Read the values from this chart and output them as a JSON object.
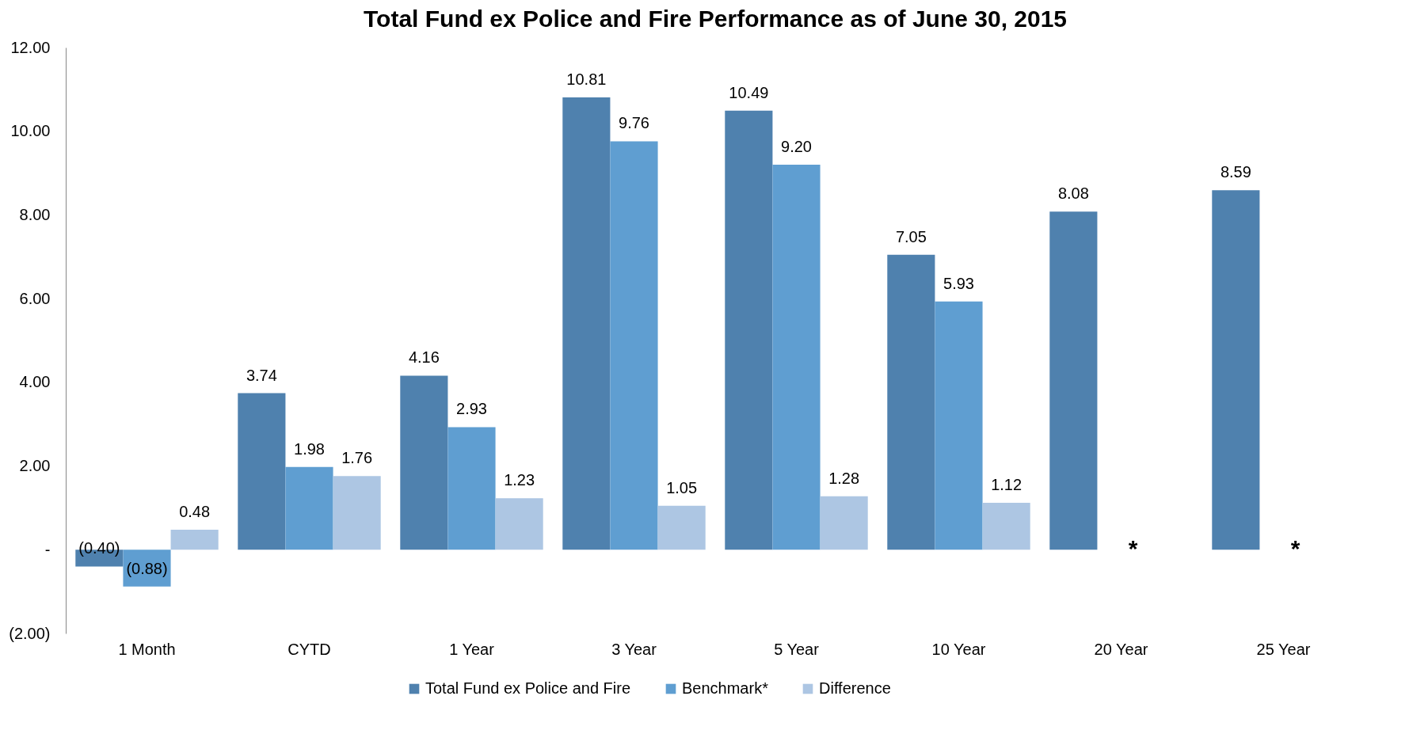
{
  "chart_data": {
    "type": "bar",
    "title": "Total Fund ex Police and Fire Performance as of June 30, 2015",
    "categories": [
      "1 Month",
      "CYTD",
      "1 Year",
      "3 Year",
      "5 Year",
      "10 Year",
      "20 Year",
      "25 Year"
    ],
    "series": [
      {
        "name": "Total Fund ex Police and Fire",
        "color": "#4f81ae",
        "values": [
          -0.4,
          3.74,
          4.16,
          10.81,
          10.49,
          7.05,
          8.08,
          8.59
        ],
        "value_labels": [
          "(0.40)",
          "3.74",
          "4.16",
          "10.81",
          "10.49",
          "7.05",
          "8.08",
          "8.59"
        ]
      },
      {
        "name": "Benchmark*",
        "color": "#5f9ed1",
        "values": [
          -0.88,
          1.98,
          2.93,
          9.76,
          9.2,
          5.93,
          null,
          null
        ],
        "value_labels": [
          "(0.88)",
          "1.98",
          "2.93",
          "9.76",
          "9.20",
          "5.93",
          null,
          null
        ]
      },
      {
        "name": "Difference",
        "color": "#adc6e3",
        "values": [
          0.48,
          1.76,
          1.23,
          1.05,
          1.28,
          1.12,
          null,
          null
        ],
        "value_labels": [
          "0.48",
          "1.76",
          "1.23",
          "1.05",
          "1.28",
          "1.12",
          null,
          null
        ]
      }
    ],
    "annotations": [
      "*",
      "*"
    ],
    "ylim": [
      -2,
      12
    ],
    "yticks": [
      {
        "value": -2,
        "label": "(2.00)"
      },
      {
        "value": 0,
        "label": "-"
      },
      {
        "value": 2,
        "label": "2.00"
      },
      {
        "value": 4,
        "label": "4.00"
      },
      {
        "value": 6,
        "label": "6.00"
      },
      {
        "value": 8,
        "label": "8.00"
      },
      {
        "value": 10,
        "label": "10.00"
      },
      {
        "value": 12,
        "label": "12.00"
      }
    ],
    "grid": false,
    "legend": "bottom"
  }
}
